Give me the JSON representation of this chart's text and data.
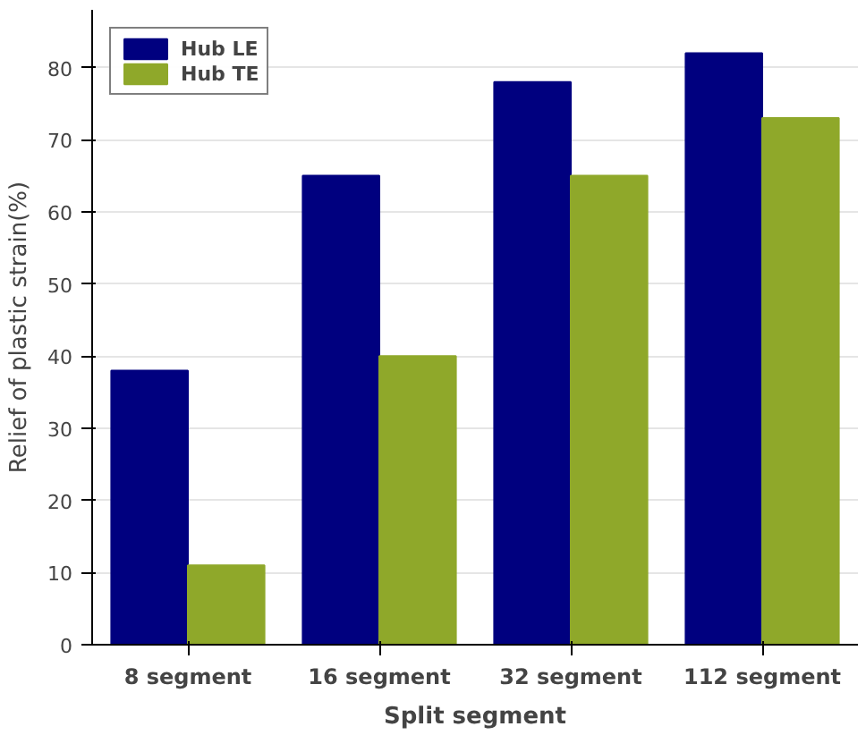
{
  "chart_data": {
    "type": "bar",
    "xlabel": "Split segment",
    "ylabel": "Relief of plastic strain(%)",
    "categories": [
      "8 segment",
      "16 segment",
      "32 segment",
      "112 segment"
    ],
    "series": [
      {
        "name": "Hub LE",
        "color": "#00007f",
        "values": [
          38,
          65,
          78,
          82
        ]
      },
      {
        "name": "Hub TE",
        "color": "#8fa82a",
        "values": [
          11,
          40,
          65,
          73
        ]
      }
    ],
    "ylim": [
      0,
      88
    ],
    "yticks": [
      0,
      10,
      20,
      30,
      40,
      50,
      60,
      70,
      80
    ],
    "grid": "y",
    "legend": "top left"
  }
}
